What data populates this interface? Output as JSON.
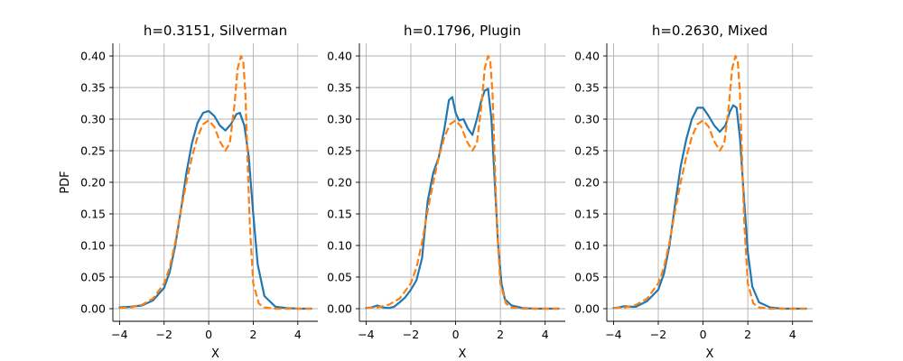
{
  "figure": {
    "ylabel_shared": "PDF"
  },
  "chart_data": [
    {
      "type": "line",
      "title": "h=0.3151, Silverman",
      "xlabel": "X",
      "ylabel": "PDF",
      "xlim": [
        -4.3,
        4.9
      ],
      "ylim": [
        -0.02,
        0.42
      ],
      "xticks": [
        -4,
        -2,
        0,
        2,
        4
      ],
      "yticks": [
        0.0,
        0.05,
        0.1,
        0.15,
        0.2,
        0.25,
        0.3,
        0.35,
        0.4
      ],
      "grid": true,
      "series": [
        {
          "style": "solid",
          "color": "#1f77b4",
          "x": [
            -4.0,
            -3.5,
            -3.0,
            -2.5,
            -2.0,
            -1.75,
            -1.5,
            -1.25,
            -1.0,
            -0.75,
            -0.5,
            -0.25,
            0.0,
            0.25,
            0.5,
            0.75,
            1.0,
            1.25,
            1.4,
            1.6,
            1.8,
            2.0,
            2.2,
            2.5,
            3.0,
            3.5,
            4.0,
            4.6
          ],
          "y": [
            0.002,
            0.003,
            0.005,
            0.013,
            0.033,
            0.058,
            0.1,
            0.155,
            0.215,
            0.262,
            0.294,
            0.31,
            0.313,
            0.305,
            0.29,
            0.282,
            0.292,
            0.308,
            0.31,
            0.29,
            0.24,
            0.15,
            0.07,
            0.02,
            0.003,
            0.001,
            0.0,
            0.0
          ]
        },
        {
          "style": "dashed",
          "color": "#ff7f0e",
          "x": [
            -4.0,
            -3.5,
            -3.0,
            -2.5,
            -2.0,
            -1.75,
            -1.5,
            -1.25,
            -1.0,
            -0.75,
            -0.5,
            -0.25,
            0.0,
            0.25,
            0.5,
            0.75,
            0.95,
            1.15,
            1.3,
            1.45,
            1.55,
            1.65,
            1.75,
            1.85,
            2.0,
            2.25,
            2.5,
            3.0,
            3.5,
            4.0,
            4.6
          ],
          "y": [
            0.001,
            0.002,
            0.006,
            0.016,
            0.04,
            0.065,
            0.105,
            0.155,
            0.2,
            0.24,
            0.272,
            0.292,
            0.298,
            0.288,
            0.265,
            0.25,
            0.262,
            0.32,
            0.38,
            0.4,
            0.392,
            0.34,
            0.23,
            0.13,
            0.04,
            0.008,
            0.002,
            0.0,
            0.0,
            0.0,
            0.0
          ]
        }
      ]
    },
    {
      "type": "line",
      "title": "h=0.1796, Plugin",
      "xlabel": "X",
      "ylabel": "",
      "xlim": [
        -4.3,
        4.9
      ],
      "ylim": [
        -0.02,
        0.42
      ],
      "xticks": [
        -4,
        -2,
        0,
        2,
        4
      ],
      "yticks": [
        0.0,
        0.05,
        0.1,
        0.15,
        0.2,
        0.25,
        0.3,
        0.35,
        0.4
      ],
      "grid": true,
      "series": [
        {
          "style": "solid",
          "color": "#1f77b4",
          "x": [
            -4.0,
            -3.75,
            -3.5,
            -3.25,
            -3.0,
            -2.75,
            -2.5,
            -2.25,
            -2.0,
            -1.75,
            -1.5,
            -1.25,
            -1.0,
            -0.75,
            -0.5,
            -0.3,
            -0.15,
            0.0,
            0.15,
            0.35,
            0.55,
            0.75,
            0.95,
            1.15,
            1.3,
            1.45,
            1.6,
            1.75,
            1.9,
            2.05,
            2.2,
            2.5,
            3.0,
            3.5,
            4.0,
            4.6
          ],
          "y": [
            0.001,
            0.002,
            0.005,
            0.002,
            0.001,
            0.003,
            0.01,
            0.018,
            0.03,
            0.045,
            0.08,
            0.17,
            0.215,
            0.24,
            0.285,
            0.33,
            0.335,
            0.31,
            0.298,
            0.3,
            0.285,
            0.275,
            0.3,
            0.33,
            0.345,
            0.348,
            0.3,
            0.2,
            0.1,
            0.04,
            0.015,
            0.005,
            0.001,
            0.0,
            0.0,
            0.0
          ]
        },
        {
          "style": "dashed",
          "color": "#ff7f0e",
          "x": [
            -4.0,
            -3.5,
            -3.0,
            -2.5,
            -2.0,
            -1.75,
            -1.5,
            -1.25,
            -1.0,
            -0.75,
            -0.5,
            -0.25,
            0.0,
            0.25,
            0.5,
            0.75,
            0.95,
            1.15,
            1.3,
            1.45,
            1.55,
            1.65,
            1.75,
            1.85,
            2.0,
            2.25,
            2.5,
            3.0,
            3.5,
            4.0,
            4.6
          ],
          "y": [
            0.001,
            0.002,
            0.006,
            0.016,
            0.04,
            0.065,
            0.105,
            0.155,
            0.2,
            0.24,
            0.272,
            0.292,
            0.298,
            0.288,
            0.265,
            0.25,
            0.262,
            0.32,
            0.38,
            0.4,
            0.392,
            0.34,
            0.23,
            0.13,
            0.04,
            0.008,
            0.002,
            0.0,
            0.0,
            0.0,
            0.0
          ]
        }
      ]
    },
    {
      "type": "line",
      "title": "h=0.2630, Mixed",
      "xlabel": "X",
      "ylabel": "",
      "xlim": [
        -4.3,
        4.9
      ],
      "ylim": [
        -0.02,
        0.42
      ],
      "xticks": [
        -4,
        -2,
        0,
        2,
        4
      ],
      "yticks": [
        0.0,
        0.05,
        0.1,
        0.15,
        0.2,
        0.25,
        0.3,
        0.35,
        0.4
      ],
      "grid": true,
      "series": [
        {
          "style": "solid",
          "color": "#1f77b4",
          "x": [
            -4.0,
            -3.75,
            -3.5,
            -3.25,
            -3.0,
            -2.5,
            -2.0,
            -1.75,
            -1.5,
            -1.25,
            -1.0,
            -0.75,
            -0.5,
            -0.25,
            0.0,
            0.25,
            0.5,
            0.75,
            1.0,
            1.2,
            1.35,
            1.5,
            1.65,
            1.8,
            2.0,
            2.2,
            2.5,
            3.0,
            3.5,
            4.0,
            4.6
          ],
          "y": [
            0.001,
            0.002,
            0.004,
            0.003,
            0.003,
            0.012,
            0.03,
            0.055,
            0.1,
            0.165,
            0.225,
            0.268,
            0.3,
            0.318,
            0.318,
            0.305,
            0.29,
            0.28,
            0.29,
            0.312,
            0.322,
            0.318,
            0.27,
            0.19,
            0.09,
            0.035,
            0.01,
            0.002,
            0.0,
            0.0,
            0.0
          ]
        },
        {
          "style": "dashed",
          "color": "#ff7f0e",
          "x": [
            -4.0,
            -3.5,
            -3.0,
            -2.5,
            -2.0,
            -1.75,
            -1.5,
            -1.25,
            -1.0,
            -0.75,
            -0.5,
            -0.25,
            0.0,
            0.25,
            0.5,
            0.75,
            0.95,
            1.15,
            1.3,
            1.45,
            1.55,
            1.65,
            1.75,
            1.85,
            2.0,
            2.25,
            2.5,
            3.0,
            3.5,
            4.0,
            4.6
          ],
          "y": [
            0.001,
            0.002,
            0.006,
            0.016,
            0.04,
            0.065,
            0.105,
            0.155,
            0.2,
            0.24,
            0.272,
            0.292,
            0.298,
            0.288,
            0.265,
            0.25,
            0.262,
            0.32,
            0.38,
            0.4,
            0.392,
            0.34,
            0.23,
            0.13,
            0.04,
            0.008,
            0.002,
            0.0,
            0.0,
            0.0,
            0.0
          ]
        }
      ]
    }
  ]
}
